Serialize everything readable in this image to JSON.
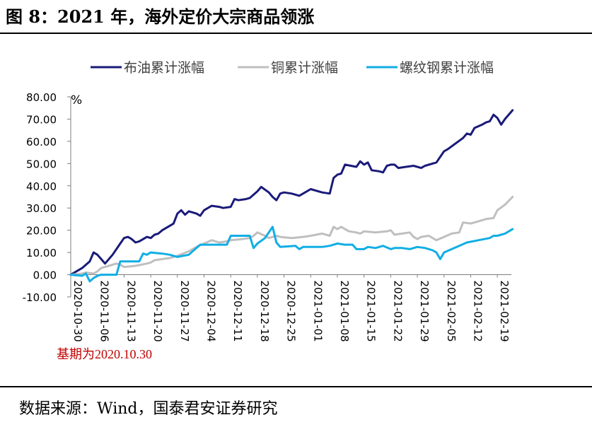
{
  "figure": {
    "title": "图 8：2021 年，海外定价大宗商品领涨",
    "source": "数据来源：Wind，国泰君安证券研究",
    "base_note": "基期为2020.10.30"
  },
  "chart_data": {
    "type": "line",
    "ylabel": "%",
    "ylim": [
      -10,
      80
    ],
    "yticks": [
      "-10.00",
      "0.00",
      "10.00",
      "20.00",
      "30.00",
      "40.00",
      "50.00",
      "60.00",
      "70.00",
      "80.00"
    ],
    "xticks": [
      "2020-10-30",
      "2020-11-06",
      "2020-11-13",
      "2020-11-20",
      "2020-11-27",
      "2020-12-04",
      "2020-12-11",
      "2020-12-18",
      "2020-12-25",
      "2021-01-01",
      "2021-01-08",
      "2021-01-15",
      "2021-01-22",
      "2021-01-29",
      "2021-02-05",
      "2021-02-12",
      "2021-02-19"
    ],
    "legend_position": "top",
    "grid": false,
    "series": [
      {
        "name": "布油累计涨幅",
        "color": "#1a1a7a",
        "points": [
          [
            "2020-10-30",
            0
          ],
          [
            "2020-11-02",
            3
          ],
          [
            "2020-11-04",
            6
          ],
          [
            "2020-11-05",
            10
          ],
          [
            "2020-11-06",
            9
          ],
          [
            "2020-11-07",
            7
          ],
          [
            "2020-11-08",
            5
          ],
          [
            "2020-11-10",
            9
          ],
          [
            "2020-11-12",
            14
          ],
          [
            "2020-11-13",
            16.5
          ],
          [
            "2020-11-14",
            17
          ],
          [
            "2020-11-15",
            16
          ],
          [
            "2020-11-16",
            14.5
          ],
          [
            "2020-11-17",
            15
          ],
          [
            "2020-11-19",
            17
          ],
          [
            "2020-11-20",
            16.5
          ],
          [
            "2020-11-21",
            18
          ],
          [
            "2020-11-22",
            18.5
          ],
          [
            "2020-11-23",
            20
          ],
          [
            "2020-11-25",
            22
          ],
          [
            "2020-11-26",
            23
          ],
          [
            "2020-11-27",
            27.5
          ],
          [
            "2020-11-28",
            29
          ],
          [
            "2020-11-29",
            27
          ],
          [
            "2020-11-30",
            28.5
          ],
          [
            "2020-12-02",
            27.5
          ],
          [
            "2020-12-03",
            26.5
          ],
          [
            "2020-12-04",
            29
          ],
          [
            "2020-12-06",
            31
          ],
          [
            "2020-12-08",
            30.5
          ],
          [
            "2020-12-09",
            30
          ],
          [
            "2020-12-11",
            30.5
          ],
          [
            "2020-12-12",
            34
          ],
          [
            "2020-12-13",
            33.5
          ],
          [
            "2020-12-15",
            34
          ],
          [
            "2020-12-16",
            34.5
          ],
          [
            "2020-12-17",
            36
          ],
          [
            "2020-12-18",
            37.5
          ],
          [
            "2020-12-19",
            39.5
          ],
          [
            "2020-12-21",
            37
          ],
          [
            "2020-12-22",
            35
          ],
          [
            "2020-12-23",
            33.5
          ],
          [
            "2020-12-24",
            36.5
          ],
          [
            "2020-12-25",
            37
          ],
          [
            "2020-12-27",
            36.5
          ],
          [
            "2020-12-29",
            35.5
          ],
          [
            "2020-12-30",
            36.5
          ],
          [
            "2021-01-01",
            38.5
          ],
          [
            "2021-01-04",
            37
          ],
          [
            "2021-01-06",
            36.5
          ],
          [
            "2021-01-07",
            43.5
          ],
          [
            "2021-01-08",
            45
          ],
          [
            "2021-01-09",
            45.5
          ],
          [
            "2021-01-10",
            49.5
          ],
          [
            "2021-01-13",
            48.5
          ],
          [
            "2021-01-14",
            51
          ],
          [
            "2021-01-15",
            49.5
          ],
          [
            "2021-01-16",
            50.5
          ],
          [
            "2021-01-17",
            47
          ],
          [
            "2021-01-19",
            46.5
          ],
          [
            "2021-01-20",
            46
          ],
          [
            "2021-01-21",
            49
          ],
          [
            "2021-01-22",
            49.5
          ],
          [
            "2021-01-23",
            49.5
          ],
          [
            "2021-01-24",
            48
          ],
          [
            "2021-01-26",
            48.5
          ],
          [
            "2021-01-28",
            49
          ],
          [
            "2021-01-30",
            48
          ],
          [
            "2021-01-31",
            49
          ],
          [
            "2021-02-03",
            50.5
          ],
          [
            "2021-02-05",
            55.5
          ],
          [
            "2021-02-06",
            56.5
          ],
          [
            "2021-02-08",
            59
          ],
          [
            "2021-02-10",
            61.5
          ],
          [
            "2021-02-11",
            63.5
          ],
          [
            "2021-02-12",
            63
          ],
          [
            "2021-02-13",
            66
          ],
          [
            "2021-02-15",
            67.5
          ],
          [
            "2021-02-16",
            68.5
          ],
          [
            "2021-02-17",
            69
          ],
          [
            "2021-02-18",
            72
          ],
          [
            "2021-02-19",
            70.5
          ],
          [
            "2021-02-20",
            67.5
          ],
          [
            "2021-02-21",
            70
          ],
          [
            "2021-02-23",
            74
          ]
        ]
      },
      {
        "name": "铜累计涨幅",
        "color": "#bfbfbf",
        "points": [
          [
            "2020-10-30",
            0
          ],
          [
            "2020-11-02",
            0.5
          ],
          [
            "2020-11-03",
            1
          ],
          [
            "2020-11-05",
            0.5
          ],
          [
            "2020-11-06",
            1.5
          ],
          [
            "2020-11-07",
            3
          ],
          [
            "2020-11-09",
            4
          ],
          [
            "2020-11-11",
            5
          ],
          [
            "2020-11-12",
            4.5
          ],
          [
            "2020-11-13",
            3.5
          ],
          [
            "2020-11-16",
            4
          ],
          [
            "2020-11-19",
            5
          ],
          [
            "2020-11-20",
            5.5
          ],
          [
            "2020-11-21",
            6.5
          ],
          [
            "2020-11-23",
            7
          ],
          [
            "2020-11-25",
            7.5
          ],
          [
            "2020-11-27",
            8.5
          ],
          [
            "2020-11-30",
            10.5
          ],
          [
            "2020-12-02",
            12.5
          ],
          [
            "2020-12-04",
            14
          ],
          [
            "2020-12-06",
            15.5
          ],
          [
            "2020-12-08",
            14.5
          ],
          [
            "2020-12-10",
            15
          ],
          [
            "2020-12-11",
            15.5
          ],
          [
            "2020-12-14",
            16
          ],
          [
            "2020-12-16",
            16.5
          ],
          [
            "2020-12-17",
            17.5
          ],
          [
            "2020-12-18",
            19
          ],
          [
            "2020-12-20",
            17.5
          ],
          [
            "2020-12-21",
            16.5
          ],
          [
            "2020-12-23",
            17.5
          ],
          [
            "2020-12-24",
            17
          ],
          [
            "2020-12-27",
            16.5
          ],
          [
            "2020-12-30",
            17
          ],
          [
            "2021-01-01",
            17.5
          ],
          [
            "2021-01-04",
            18.5
          ],
          [
            "2021-01-06",
            17.5
          ],
          [
            "2021-01-07",
            21.5
          ],
          [
            "2021-01-08",
            20.5
          ],
          [
            "2021-01-09",
            21.5
          ],
          [
            "2021-01-11",
            19.5
          ],
          [
            "2021-01-13",
            19
          ],
          [
            "2021-01-14",
            18.5
          ],
          [
            "2021-01-15",
            19.5
          ],
          [
            "2021-01-18",
            19
          ],
          [
            "2021-01-21",
            19.5
          ],
          [
            "2021-01-22",
            20
          ],
          [
            "2021-01-23",
            18
          ],
          [
            "2021-01-25",
            18.5
          ],
          [
            "2021-01-27",
            19
          ],
          [
            "2021-01-28",
            17
          ],
          [
            "2021-01-29",
            16
          ],
          [
            "2021-01-30",
            17
          ],
          [
            "2021-02-01",
            17.5
          ],
          [
            "2021-02-03",
            15.5
          ],
          [
            "2021-02-05",
            17
          ],
          [
            "2021-02-07",
            18.5
          ],
          [
            "2021-02-09",
            19
          ],
          [
            "2021-02-10",
            23.5
          ],
          [
            "2021-02-12",
            23
          ],
          [
            "2021-02-14",
            24
          ],
          [
            "2021-02-16",
            25
          ],
          [
            "2021-02-18",
            25.5
          ],
          [
            "2021-02-19",
            29
          ],
          [
            "2021-02-21",
            31.5
          ],
          [
            "2021-02-23",
            35
          ]
        ]
      },
      {
        "name": "螺纹钢累计涨幅",
        "color": "#11aee4",
        "points": [
          [
            "2020-10-30",
            0
          ],
          [
            "2020-11-02",
            -0.5
          ],
          [
            "2020-11-03",
            0.5
          ],
          [
            "2020-11-04",
            -3
          ],
          [
            "2020-11-05",
            -1.5
          ],
          [
            "2020-11-06",
            -0.5
          ],
          [
            "2020-11-07",
            0
          ],
          [
            "2020-11-11",
            0
          ],
          [
            "2020-11-12",
            6
          ],
          [
            "2020-11-17",
            6
          ],
          [
            "2020-11-18",
            9.5
          ],
          [
            "2020-11-19",
            9
          ],
          [
            "2020-11-20",
            10
          ],
          [
            "2020-11-23",
            9.5
          ],
          [
            "2020-11-25",
            9
          ],
          [
            "2020-11-27",
            8
          ],
          [
            "2020-11-30",
            9
          ],
          [
            "2020-12-01",
            10.5
          ],
          [
            "2020-12-03",
            13.5
          ],
          [
            "2020-12-10",
            13.5
          ],
          [
            "2020-12-11",
            17.5
          ],
          [
            "2020-12-16",
            17.5
          ],
          [
            "2020-12-17",
            12
          ],
          [
            "2020-12-18",
            14
          ],
          [
            "2020-12-20",
            16.5
          ],
          [
            "2020-12-22",
            21.5
          ],
          [
            "2020-12-23",
            14.5
          ],
          [
            "2020-12-24",
            12.5
          ],
          [
            "2020-12-28",
            13
          ],
          [
            "2020-12-29",
            11.5
          ],
          [
            "2020-12-30",
            12.5
          ],
          [
            "2021-01-04",
            12.5
          ],
          [
            "2021-01-06",
            13
          ],
          [
            "2021-01-08",
            14
          ],
          [
            "2021-01-10",
            13.5
          ],
          [
            "2021-01-12",
            13.5
          ],
          [
            "2021-01-13",
            11.5
          ],
          [
            "2021-01-15",
            11.5
          ],
          [
            "2021-01-16",
            12.5
          ],
          [
            "2021-01-18",
            12
          ],
          [
            "2021-01-20",
            13
          ],
          [
            "2021-01-22",
            11.5
          ],
          [
            "2021-01-23",
            12
          ],
          [
            "2021-01-25",
            12
          ],
          [
            "2021-01-27",
            11.5
          ],
          [
            "2021-01-29",
            12.5
          ],
          [
            "2021-01-31",
            12
          ],
          [
            "2021-02-02",
            11
          ],
          [
            "2021-02-03",
            10
          ],
          [
            "2021-02-04",
            7
          ],
          [
            "2021-02-05",
            10
          ],
          [
            "2021-02-07",
            11.5
          ],
          [
            "2021-02-09",
            13
          ],
          [
            "2021-02-11",
            14.5
          ],
          [
            "2021-02-14",
            15.5
          ],
          [
            "2021-02-17",
            16.5
          ],
          [
            "2021-02-18",
            17.5
          ],
          [
            "2021-02-19",
            17.5
          ],
          [
            "2021-02-21",
            18.5
          ],
          [
            "2021-02-23",
            20.5
          ]
        ]
      }
    ]
  }
}
